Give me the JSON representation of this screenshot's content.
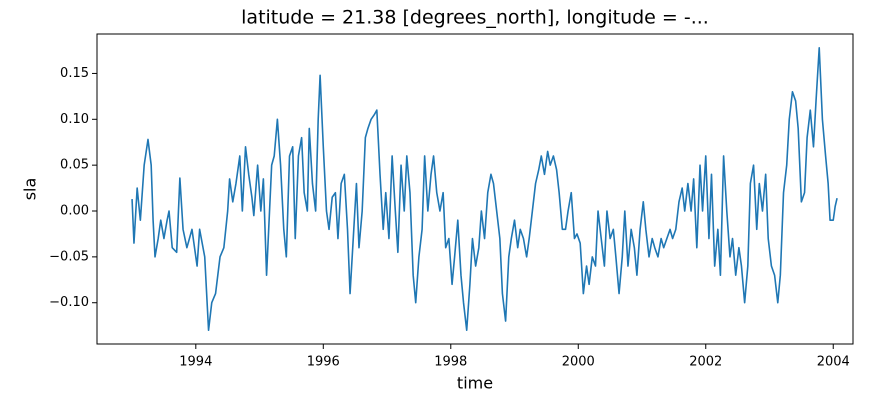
{
  "chart_data": {
    "type": "line",
    "title": "latitude = 21.38 [degrees_north], longitude = -...",
    "xlabel": "time",
    "ylabel": "sla",
    "x": [
      1993.0,
      1993.03,
      1993.08,
      1993.13,
      1993.19,
      1993.25,
      1993.3,
      1993.33,
      1993.36,
      1993.41,
      1993.45,
      1993.5,
      1993.55,
      1993.58,
      1993.63,
      1993.7,
      1993.75,
      1993.8,
      1993.86,
      1993.94,
      1994.02,
      1994.06,
      1994.14,
      1994.2,
      1994.25,
      1994.31,
      1994.38,
      1994.44,
      1994.5,
      1994.53,
      1994.58,
      1994.63,
      1994.69,
      1994.73,
      1994.78,
      1994.83,
      1994.88,
      1994.91,
      1994.97,
      1995.02,
      1995.06,
      1995.11,
      1995.19,
      1995.23,
      1995.28,
      1995.33,
      1995.38,
      1995.42,
      1995.47,
      1995.52,
      1995.56,
      1995.61,
      1995.66,
      1995.7,
      1995.75,
      1995.78,
      1995.83,
      1995.88,
      1995.92,
      1995.95,
      1996.0,
      1996.05,
      1996.09,
      1996.14,
      1996.19,
      1996.23,
      1996.28,
      1996.33,
      1996.38,
      1996.42,
      1996.47,
      1996.52,
      1996.56,
      1996.61,
      1996.66,
      1996.7,
      1996.75,
      1996.8,
      1996.84,
      1996.89,
      1996.94,
      1996.98,
      1997.03,
      1997.08,
      1997.13,
      1997.17,
      1997.22,
      1997.27,
      1997.31,
      1997.36,
      1997.41,
      1997.45,
      1997.5,
      1997.55,
      1997.59,
      1997.64,
      1997.69,
      1997.73,
      1997.78,
      1997.83,
      1997.88,
      1997.92,
      1997.97,
      1998.02,
      1998.06,
      1998.11,
      1998.16,
      1998.2,
      1998.25,
      1998.3,
      1998.34,
      1998.39,
      1998.44,
      1998.48,
      1998.53,
      1998.58,
      1998.63,
      1998.67,
      1998.72,
      1998.77,
      1998.81,
      1998.86,
      1998.91,
      1998.95,
      1999.0,
      1999.05,
      1999.09,
      1999.14,
      1999.19,
      1999.23,
      1999.28,
      1999.33,
      1999.38,
      1999.42,
      1999.47,
      1999.52,
      1999.56,
      1999.61,
      1999.66,
      1999.7,
      1999.75,
      1999.8,
      1999.84,
      1999.89,
      1999.94,
      1999.98,
      2000.03,
      2000.08,
      2000.13,
      2000.17,
      2000.22,
      2000.27,
      2000.31,
      2000.36,
      2000.41,
      2000.45,
      2000.5,
      2000.55,
      2000.59,
      2000.64,
      2000.69,
      2000.73,
      2000.78,
      2000.83,
      2000.88,
      2000.92,
      2000.97,
      2001.02,
      2001.06,
      2001.11,
      2001.16,
      2001.2,
      2001.25,
      2001.3,
      2001.34,
      2001.39,
      2001.44,
      2001.48,
      2001.53,
      2001.58,
      2001.63,
      2001.67,
      2001.72,
      2001.77,
      2001.81,
      2001.86,
      2001.91,
      2001.95,
      2002.0,
      2002.05,
      2002.09,
      2002.14,
      2002.19,
      2002.23,
      2002.28,
      2002.33,
      2002.38,
      2002.42,
      2002.47,
      2002.52,
      2002.56,
      2002.61,
      2002.66,
      2002.7,
      2002.75,
      2002.8,
      2002.84,
      2002.89,
      2002.94,
      2002.98,
      2003.03,
      2003.08,
      2003.13,
      2003.17,
      2003.22,
      2003.27,
      2003.31,
      2003.36,
      2003.41,
      2003.45,
      2003.5,
      2003.55,
      2003.59,
      2003.64,
      2003.69,
      2003.73,
      2003.78,
      2003.83,
      2003.88,
      2003.92,
      2003.95,
      2004.0,
      2004.03,
      2004.06
    ],
    "series": [
      {
        "name": "sla",
        "color": "#1f77b4",
        "values": [
          0.013,
          -0.035,
          0.025,
          -0.01,
          0.05,
          0.078,
          0.05,
          -0.01,
          -0.05,
          -0.03,
          -0.01,
          -0.03,
          -0.01,
          0.0,
          -0.04,
          -0.045,
          0.036,
          -0.02,
          -0.04,
          -0.02,
          -0.06,
          -0.02,
          -0.05,
          -0.13,
          -0.1,
          -0.09,
          -0.05,
          -0.04,
          0.0,
          0.035,
          0.01,
          0.03,
          0.06,
          0.0,
          0.07,
          0.04,
          0.015,
          -0.005,
          0.05,
          0.0,
          0.035,
          -0.07,
          0.05,
          0.06,
          0.1,
          0.05,
          -0.02,
          -0.05,
          0.06,
          0.07,
          -0.03,
          0.06,
          0.08,
          0.02,
          0.0,
          0.09,
          0.03,
          0.0,
          0.1,
          0.148,
          0.07,
          0.0,
          -0.02,
          0.015,
          0.02,
          -0.03,
          0.03,
          0.04,
          -0.02,
          -0.09,
          -0.03,
          0.03,
          -0.04,
          0.0,
          0.08,
          0.09,
          0.1,
          0.105,
          0.11,
          0.04,
          -0.02,
          0.02,
          -0.03,
          0.06,
          0.0,
          -0.045,
          0.05,
          0.0,
          0.06,
          0.02,
          -0.07,
          -0.1,
          -0.05,
          -0.02,
          0.06,
          0.0,
          0.04,
          0.06,
          0.02,
          0.0,
          0.02,
          -0.04,
          -0.03,
          -0.08,
          -0.05,
          -0.01,
          -0.07,
          -0.1,
          -0.13,
          -0.08,
          -0.03,
          -0.06,
          -0.04,
          0.0,
          -0.03,
          0.02,
          0.04,
          0.03,
          0.0,
          -0.03,
          -0.09,
          -0.12,
          -0.05,
          -0.03,
          -0.01,
          -0.04,
          -0.02,
          -0.03,
          -0.05,
          -0.03,
          0.0,
          0.03,
          0.045,
          0.06,
          0.04,
          0.065,
          0.05,
          0.06,
          0.045,
          0.02,
          -0.02,
          -0.02,
          0.0,
          0.02,
          -0.03,
          -0.025,
          -0.035,
          -0.09,
          -0.06,
          -0.08,
          -0.05,
          -0.06,
          0.0,
          -0.03,
          -0.06,
          0.0,
          -0.03,
          -0.02,
          -0.05,
          -0.09,
          -0.05,
          0.0,
          -0.06,
          -0.02,
          -0.04,
          -0.07,
          -0.02,
          0.01,
          -0.02,
          -0.05,
          -0.03,
          -0.04,
          -0.05,
          -0.03,
          -0.04,
          -0.03,
          -0.02,
          -0.03,
          -0.02,
          0.01,
          0.025,
          0.0,
          0.03,
          0.0,
          0.035,
          -0.04,
          0.05,
          0.0,
          0.06,
          -0.03,
          0.04,
          -0.06,
          -0.02,
          -0.07,
          0.06,
          0.0,
          -0.05,
          -0.03,
          -0.07,
          -0.04,
          -0.06,
          -0.1,
          -0.06,
          0.03,
          0.05,
          -0.02,
          0.03,
          0.0,
          0.04,
          -0.03,
          -0.06,
          -0.07,
          -0.1,
          -0.07,
          0.02,
          0.05,
          0.1,
          0.13,
          0.12,
          0.09,
          0.01,
          0.02,
          0.08,
          0.11,
          0.07,
          0.12,
          0.178,
          0.1,
          0.06,
          0.03,
          -0.01,
          -0.01,
          0.005,
          0.014
        ]
      }
    ],
    "xlim": [
      1992.45,
      2004.31
    ],
    "xticks": [
      1994,
      1996,
      1998,
      2000,
      2002,
      2004
    ],
    "ylim": [
      -0.145,
      0.193
    ],
    "yticks": [
      {
        "value": -0.1,
        "label": "−0.10"
      },
      {
        "value": -0.05,
        "label": "−0.05"
      },
      {
        "value": 0,
        "label": "0.00"
      },
      {
        "value": 0.05,
        "label": "0.05"
      },
      {
        "value": 0.1,
        "label": "0.10"
      },
      {
        "value": 0.15,
        "label": "0.15"
      }
    ],
    "grid": false
  }
}
